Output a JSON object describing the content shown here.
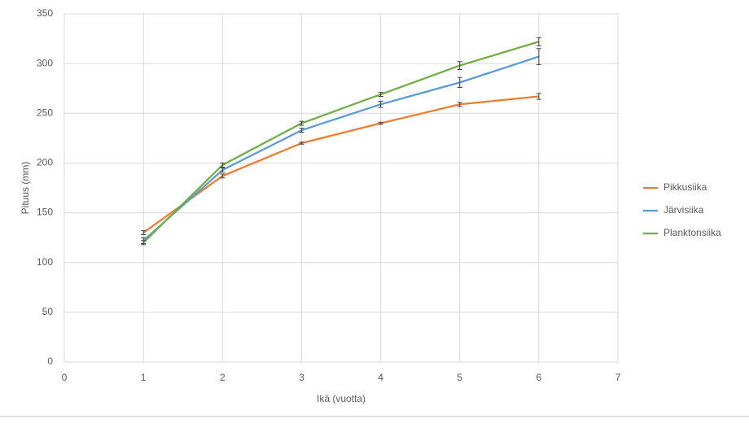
{
  "chart_data": {
    "type": "line",
    "x_label": "Ikä (vuotta)",
    "y_label": "Pituus (mm)",
    "x": [
      1,
      2,
      3,
      4,
      5,
      6
    ],
    "series": [
      {
        "name": "Pikkusiika",
        "color": "#ed7d31",
        "values": [
          130,
          187,
          220,
          240,
          259,
          267
        ],
        "errors": [
          2,
          2,
          1,
          1,
          2,
          3
        ]
      },
      {
        "name": "Järvisiika",
        "color": "#5b9bd5",
        "values": [
          122,
          193,
          233,
          259,
          281,
          307
        ],
        "errors": [
          3,
          2,
          2,
          3,
          5,
          8
        ]
      },
      {
        "name": "Planktonsiika",
        "color": "#70ad47",
        "values": [
          120,
          198,
          240,
          269,
          298,
          322
        ],
        "errors": [
          2,
          2,
          2,
          2,
          4,
          4
        ]
      }
    ],
    "xlim": [
      0,
      7
    ],
    "xticks": [
      0,
      1,
      2,
      3,
      4,
      5,
      6,
      7
    ],
    "ylim": [
      0,
      350
    ],
    "yticks": [
      0,
      50,
      100,
      150,
      200,
      250,
      300,
      350
    ],
    "grid": true,
    "legend": "right"
  }
}
